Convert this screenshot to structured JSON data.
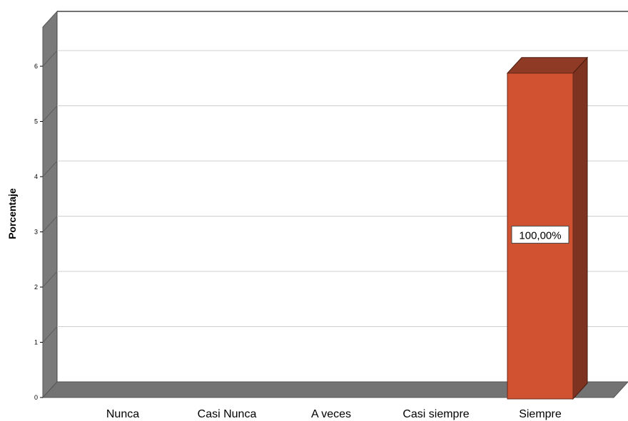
{
  "chart_data": {
    "type": "bar",
    "style": "3d",
    "categories": [
      "Nunca",
      "Casi Nunca",
      "A veces",
      "Casi siempre",
      "Siempre"
    ],
    "values": [
      0,
      0,
      0,
      0,
      5.9
    ],
    "data_labels": [
      "",
      "",
      "",
      "",
      "100,00%"
    ],
    "ylabel": "Porcentaje",
    "xlabel": "",
    "ylim": [
      0,
      6.5
    ],
    "yticks": [
      0,
      1,
      2,
      3,
      4,
      5,
      6
    ],
    "grid": true,
    "legend": "none",
    "colors": {
      "bar_front": "#d05231",
      "bar_side": "#7e3220",
      "bar_top": "#8e3a24",
      "wall": "#7a7a7a",
      "floor": "#737373",
      "gridline": "#cfcfcf"
    }
  }
}
